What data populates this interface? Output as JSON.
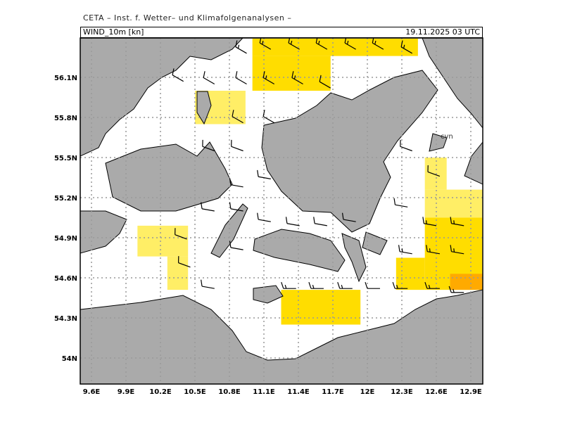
{
  "header": {
    "institution": "CETA – Inst. f. Wetter– und Klimafolgenanalysen –",
    "field": "WIND_10m [kn]",
    "valid_time": "19.11.2025 03 UTC"
  },
  "map": {
    "lon_ticks": [
      "9.6E",
      "9.9E",
      "10.2E",
      "10.5E",
      "10.8E",
      "11.1E",
      "11.4E",
      "11.7E",
      "12E",
      "12.3E",
      "12.6E",
      "12.9E"
    ],
    "lat_ticks": [
      "56.1N",
      "55.8N",
      "55.5N",
      "55.2N",
      "54.9N",
      "54.6N",
      "54.3N",
      "54N"
    ],
    "place_label": "cvn",
    "colors": {
      "land": "#aaaaaa",
      "sea": "#ffffff",
      "class_light": "#ffee66",
      "class_mid": "#ffdd00",
      "class_high": "#ffaa00"
    },
    "shaded_regions": [
      {
        "class": "class_mid",
        "lon": [
          11.0,
          12.44
        ],
        "lat": [
          56.26,
          56.39
        ]
      },
      {
        "class": "class_mid",
        "lon": [
          11.0,
          11.68
        ],
        "lat": [
          56.0,
          56.26
        ]
      },
      {
        "class": "class_light",
        "lon": [
          10.5,
          10.94
        ],
        "lat": [
          55.75,
          56.0
        ]
      },
      {
        "class": "class_light",
        "lon": [
          10.0,
          10.44
        ],
        "lat": [
          54.76,
          54.99
        ]
      },
      {
        "class": "class_light",
        "lon": [
          10.26,
          10.44
        ],
        "lat": [
          54.51,
          54.76
        ]
      },
      {
        "class": "class_mid",
        "lon": [
          11.25,
          11.94
        ],
        "lat": [
          54.25,
          54.51
        ]
      },
      {
        "class": "class_light",
        "lon": [
          12.5,
          12.69
        ],
        "lat": [
          55.26,
          55.5
        ]
      },
      {
        "class": "class_light",
        "lon": [
          12.5,
          13.0
        ],
        "lat": [
          55.05,
          55.26
        ]
      },
      {
        "class": "class_mid",
        "lon": [
          12.5,
          13.0
        ],
        "lat": [
          54.51,
          55.05
        ]
      },
      {
        "class": "class_mid",
        "lon": [
          12.25,
          12.5
        ],
        "lat": [
          54.51,
          54.75
        ]
      },
      {
        "class": "class_high",
        "lon": [
          12.72,
          13.0
        ],
        "lat": [
          54.51,
          54.63
        ]
      }
    ],
    "wind_barbs": [
      [
        10.95,
        56.28,
        300,
        15
      ],
      [
        11.16,
        56.31,
        300,
        15
      ],
      [
        11.41,
        56.31,
        300,
        15
      ],
      [
        11.65,
        56.31,
        300,
        15
      ],
      [
        11.9,
        56.31,
        300,
        15
      ],
      [
        12.14,
        56.31,
        300,
        15
      ],
      [
        12.39,
        56.28,
        300,
        15
      ],
      [
        10.4,
        56.07,
        300,
        10
      ],
      [
        10.67,
        56.05,
        300,
        10
      ],
      [
        10.95,
        56.05,
        300,
        10
      ],
      [
        11.19,
        56.05,
        300,
        15
      ],
      [
        11.44,
        56.05,
        300,
        15
      ],
      [
        11.68,
        56.02,
        300,
        10
      ],
      [
        10.92,
        55.76,
        300,
        10
      ],
      [
        11.19,
        55.76,
        300,
        10
      ],
      [
        10.67,
        55.55,
        290,
        10
      ],
      [
        10.92,
        55.55,
        290,
        10
      ],
      [
        11.16,
        55.34,
        280,
        10
      ],
      [
        10.92,
        55.28,
        280,
        10
      ],
      [
        10.67,
        55.1,
        280,
        10
      ],
      [
        10.92,
        55.1,
        280,
        10
      ],
      [
        11.16,
        55.02,
        280,
        10
      ],
      [
        11.41,
        54.99,
        280,
        10
      ],
      [
        11.65,
        54.99,
        280,
        10
      ],
      [
        11.9,
        55.02,
        280,
        10
      ],
      [
        10.43,
        54.89,
        290,
        10
      ],
      [
        10.92,
        54.81,
        280,
        10
      ],
      [
        10.46,
        54.68,
        290,
        10
      ],
      [
        10.67,
        54.52,
        280,
        10
      ],
      [
        11.38,
        54.52,
        270,
        15
      ],
      [
        11.62,
        54.52,
        270,
        15
      ],
      [
        11.87,
        54.52,
        270,
        15
      ],
      [
        12.11,
        54.52,
        270,
        10
      ],
      [
        12.35,
        54.52,
        270,
        15
      ],
      [
        12.63,
        54.52,
        270,
        15
      ],
      [
        12.84,
        54.49,
        270,
        15
      ],
      [
        12.6,
        54.99,
        280,
        15
      ],
      [
        12.84,
        54.99,
        280,
        15
      ],
      [
        12.39,
        54.78,
        280,
        15
      ],
      [
        12.63,
        54.78,
        280,
        15
      ],
      [
        12.84,
        54.78,
        280,
        15
      ],
      [
        12.39,
        55.55,
        290,
        10
      ],
      [
        12.63,
        55.36,
        290,
        10
      ],
      [
        12.35,
        55.13,
        280,
        10
      ]
    ]
  }
}
